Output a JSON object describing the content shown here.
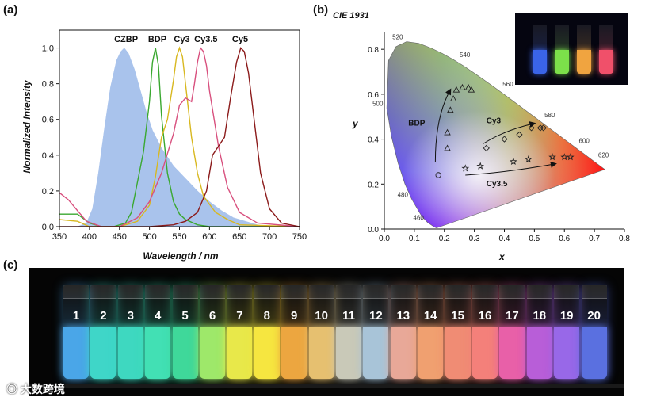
{
  "panels": {
    "a": "(a)",
    "b": "(b)",
    "c": "(c)"
  },
  "chart_data": [
    {
      "type": "line",
      "panel": "a",
      "xlabel": "Wavelength / nm",
      "ylabel": "Normalized Intensity",
      "xlim": [
        350,
        750
      ],
      "ylim": [
        0,
        1.1
      ],
      "xticks": [
        350,
        400,
        450,
        500,
        550,
        600,
        650,
        700,
        750
      ],
      "yticks": [
        0.0,
        0.2,
        0.4,
        0.6,
        0.8,
        1.0
      ],
      "series": [
        {
          "name": "CZBP",
          "style": "area",
          "color": "#a9c3ec",
          "x": [
            380,
            395,
            405,
            415,
            425,
            435,
            445,
            452,
            458,
            465,
            475,
            485,
            495,
            505,
            520,
            540,
            560,
            580,
            600,
            620,
            640,
            660,
            680,
            700
          ],
          "y": [
            0.0,
            0.02,
            0.1,
            0.3,
            0.55,
            0.78,
            0.93,
            0.98,
            1.0,
            0.97,
            0.88,
            0.76,
            0.64,
            0.54,
            0.44,
            0.34,
            0.27,
            0.2,
            0.14,
            0.09,
            0.05,
            0.03,
            0.01,
            0.0
          ]
        },
        {
          "name": "BDP",
          "color": "#3aa830",
          "x": [
            350,
            380,
            400,
            420,
            440,
            460,
            470,
            480,
            490,
            500,
            505,
            510,
            515,
            520,
            530,
            540,
            550,
            560,
            580,
            600,
            750
          ],
          "y": [
            0.07,
            0.07,
            0.02,
            0.0,
            0.0,
            0.02,
            0.08,
            0.25,
            0.42,
            0.7,
            0.92,
            1.0,
            0.9,
            0.62,
            0.3,
            0.14,
            0.07,
            0.04,
            0.01,
            0.0,
            0.0
          ]
        },
        {
          "name": "Cy3",
          "color": "#d8b820",
          "x": [
            350,
            380,
            400,
            450,
            480,
            500,
            510,
            520,
            530,
            540,
            545,
            550,
            555,
            560,
            570,
            580,
            590,
            610,
            630,
            650,
            750
          ],
          "y": [
            0.04,
            0.03,
            0.0,
            0.0,
            0.03,
            0.12,
            0.28,
            0.5,
            0.6,
            0.82,
            0.95,
            1.0,
            0.95,
            0.8,
            0.5,
            0.3,
            0.17,
            0.08,
            0.04,
            0.01,
            0.0
          ]
        },
        {
          "name": "Cy3.5",
          "color": "#d8507e",
          "x": [
            350,
            365,
            380,
            395,
            420,
            450,
            480,
            500,
            520,
            540,
            550,
            560,
            570,
            575,
            580,
            585,
            590,
            595,
            600,
            615,
            630,
            650,
            680,
            750
          ],
          "y": [
            0.19,
            0.15,
            0.09,
            0.03,
            0.0,
            0.0,
            0.05,
            0.14,
            0.3,
            0.52,
            0.68,
            0.72,
            0.7,
            0.8,
            0.92,
            1.0,
            0.98,
            0.9,
            0.76,
            0.45,
            0.22,
            0.08,
            0.02,
            0.0
          ]
        },
        {
          "name": "Cy5",
          "color": "#8b1a1a",
          "x": [
            350,
            400,
            450,
            500,
            540,
            560,
            580,
            595,
            605,
            615,
            625,
            635,
            645,
            652,
            658,
            665,
            675,
            685,
            700,
            720,
            750
          ],
          "y": [
            0.0,
            0.0,
            0.0,
            0.0,
            0.01,
            0.03,
            0.08,
            0.2,
            0.4,
            0.45,
            0.5,
            0.72,
            0.92,
            1.0,
            0.98,
            0.86,
            0.58,
            0.3,
            0.1,
            0.02,
            0.0
          ]
        }
      ],
      "peak_labels": [
        {
          "text": "CZBP",
          "x": 461
        },
        {
          "text": "BDP",
          "x": 513
        },
        {
          "text": "Cy3",
          "x": 554
        },
        {
          "text": "Cy3.5",
          "x": 594
        },
        {
          "text": "Cy5",
          "x": 651
        }
      ]
    },
    {
      "type": "scatter",
      "panel": "b",
      "title": "CIE 1931",
      "xlabel": "x",
      "ylabel": "y",
      "xlim": [
        0.0,
        0.8
      ],
      "ylim": [
        0.0,
        0.85
      ],
      "xticks": [
        0.0,
        0.1,
        0.2,
        0.3,
        0.4,
        0.5,
        0.6,
        0.7,
        0.8
      ],
      "yticks": [
        0.0,
        0.2,
        0.4,
        0.6,
        0.8
      ],
      "locus": [
        [
          0.1741,
          0.005
        ],
        [
          0.1738,
          0.0049
        ],
        [
          0.1666,
          0.0089
        ],
        [
          0.144,
          0.0297
        ],
        [
          0.1241,
          0.0578
        ],
        [
          0.0913,
          0.1327
        ],
        [
          0.0687,
          0.2007
        ],
        [
          0.0454,
          0.295
        ],
        [
          0.0235,
          0.4127
        ],
        [
          0.0082,
          0.5384
        ],
        [
          0.0139,
          0.7502
        ],
        [
          0.0389,
          0.812
        ],
        [
          0.0743,
          0.8338
        ],
        [
          0.1142,
          0.8262
        ],
        [
          0.1547,
          0.8059
        ],
        [
          0.1929,
          0.7816
        ],
        [
          0.2296,
          0.7543
        ],
        [
          0.2658,
          0.7243
        ],
        [
          0.3016,
          0.6923
        ],
        [
          0.3373,
          0.6589
        ],
        [
          0.3731,
          0.6245
        ],
        [
          0.4087,
          0.5896
        ],
        [
          0.4441,
          0.5547
        ],
        [
          0.4788,
          0.5202
        ],
        [
          0.5125,
          0.4866
        ],
        [
          0.5448,
          0.4544
        ],
        [
          0.5752,
          0.4242
        ],
        [
          0.6029,
          0.3965
        ],
        [
          0.627,
          0.3725
        ],
        [
          0.6482,
          0.3514
        ],
        [
          0.6658,
          0.334
        ],
        [
          0.6915,
          0.3083
        ],
        [
          0.7079,
          0.292
        ],
        [
          0.7347,
          0.2653
        ]
      ],
      "wavelength_labels": [
        {
          "text": "460",
          "x": 0.144,
          "y": 0.0297
        },
        {
          "text": "480",
          "x": 0.0913,
          "y": 0.1327
        },
        {
          "text": "500",
          "x": 0.0082,
          "y": 0.5384
        },
        {
          "text": "520",
          "x": 0.0743,
          "y": 0.8338
        },
        {
          "text": "540",
          "x": 0.2296,
          "y": 0.7543
        },
        {
          "text": "560",
          "x": 0.3731,
          "y": 0.6245
        },
        {
          "text": "580",
          "x": 0.5125,
          "y": 0.4866
        },
        {
          "text": "600",
          "x": 0.627,
          "y": 0.3725
        },
        {
          "text": "620",
          "x": 0.6915,
          "y": 0.3083
        }
      ],
      "series": [
        {
          "name": "BDP",
          "marker": "triangle",
          "points": [
            [
              0.21,
              0.36
            ],
            [
              0.21,
              0.43
            ],
            [
              0.22,
              0.53
            ],
            [
              0.23,
              0.58
            ],
            [
              0.24,
              0.62
            ],
            [
              0.26,
              0.63
            ],
            [
              0.28,
              0.63
            ],
            [
              0.29,
              0.62
            ]
          ]
        },
        {
          "name": "Cy3",
          "marker": "diamond",
          "points": [
            [
              0.34,
              0.36
            ],
            [
              0.4,
              0.4
            ],
            [
              0.45,
              0.42
            ],
            [
              0.49,
              0.45
            ],
            [
              0.52,
              0.45
            ],
            [
              0.53,
              0.45
            ]
          ]
        },
        {
          "name": "Cy3.5",
          "marker": "star",
          "points": [
            [
              0.27,
              0.27
            ],
            [
              0.32,
              0.28
            ],
            [
              0.43,
              0.3
            ],
            [
              0.48,
              0.31
            ],
            [
              0.56,
              0.32
            ],
            [
              0.6,
              0.32
            ],
            [
              0.62,
              0.32
            ]
          ]
        },
        {
          "name": "origin",
          "marker": "circle",
          "points": [
            [
              0.18,
              0.24
            ]
          ]
        }
      ],
      "series_labels": [
        {
          "text": "BDP",
          "x": 0.08,
          "y": 0.46
        },
        {
          "text": "Cy3",
          "x": 0.34,
          "y": 0.47
        },
        {
          "text": "Cy3.5",
          "x": 0.34,
          "y": 0.19
        }
      ]
    }
  ],
  "vials": {
    "numbers": [
      "1",
      "2",
      "3",
      "4",
      "5",
      "6",
      "7",
      "8",
      "9",
      "10",
      "11",
      "12",
      "13",
      "14",
      "15",
      "16",
      "17",
      "18",
      "19",
      "20"
    ],
    "colors": [
      "#4aa6e8",
      "#3fd6c8",
      "#3ed8c0",
      "#42e0b4",
      "#3fd89a",
      "#9ee86a",
      "#e8e84a",
      "#f6e640",
      "#eca640",
      "#e6c070",
      "#c9c9b8",
      "#a8c4d8",
      "#e8a898",
      "#f0a070",
      "#f08c74",
      "#f4807a",
      "#e860a8",
      "#b85ed8",
      "#9868e8",
      "#5a70e0"
    ]
  },
  "inset_vials": {
    "colors": [
      "#3a64e8",
      "#7ce04a",
      "#f0a440",
      "#f0506a"
    ]
  },
  "watermark": "大数跨境"
}
